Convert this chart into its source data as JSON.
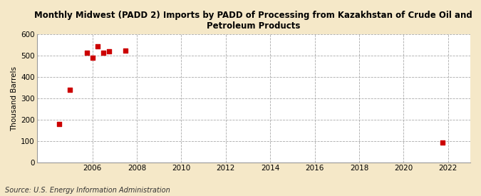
{
  "title": "Monthly Midwest (PADD 2) Imports by PADD of Processing from Kazakhstan of Crude Oil and\nPetroleum Products",
  "ylabel": "Thousand Barrels",
  "source": "Source: U.S. Energy Information Administration",
  "outer_bg": "#f5e8c8",
  "plot_bg": "#ffffff",
  "marker_color": "#cc0000",
  "marker": "s",
  "marker_size": 4,
  "xlim": [
    2003.5,
    2023.0
  ],
  "ylim": [
    0,
    600
  ],
  "yticks": [
    0,
    100,
    200,
    300,
    400,
    500,
    600
  ],
  "xticks": [
    2006,
    2008,
    2010,
    2012,
    2014,
    2016,
    2018,
    2020,
    2022
  ],
  "data_x": [
    2004.5,
    2005.0,
    2005.75,
    2006.0,
    2006.25,
    2006.5,
    2006.75,
    2007.5,
    2021.75
  ],
  "data_y": [
    180,
    340,
    515,
    490,
    545,
    515,
    520,
    525,
    95
  ]
}
